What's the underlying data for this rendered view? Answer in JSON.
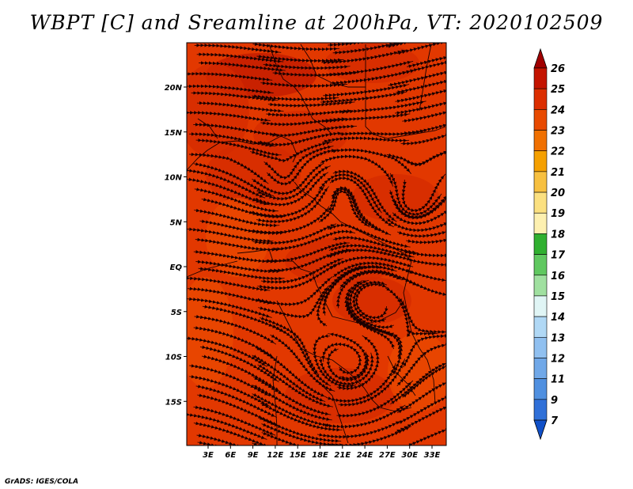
{
  "title": "WBPT [C] and Sreamline at 200hPa, VT: 2020102509",
  "credit": "GrADS: IGES/COLA",
  "map": {
    "lat_ticks": [
      "20N",
      "15N",
      "10N",
      "5N",
      "EQ",
      "5S",
      "10S",
      "15S"
    ],
    "lon_ticks": [
      "3E",
      "6E",
      "9E",
      "12E",
      "15E",
      "18E",
      "21E",
      "24E",
      "27E",
      "30E",
      "33E"
    ],
    "field_colors": [
      "#c01a00",
      "#d42b00",
      "#e33a00",
      "#ea4a00"
    ]
  },
  "colorbar": {
    "levels": [
      "26",
      "25",
      "24",
      "23",
      "22",
      "21",
      "20",
      "19",
      "18",
      "17",
      "16",
      "15",
      "14",
      "13",
      "12",
      "11",
      "9",
      "7"
    ],
    "colors": [
      "#a00000",
      "#c41400",
      "#dc2e00",
      "#e84a00",
      "#f07000",
      "#f5a000",
      "#f7c040",
      "#fbe080",
      "#fdf0b0",
      "#30b030",
      "#60c860",
      "#a0e0a0",
      "#e0f5f5",
      "#b0d8f5",
      "#90c0f0",
      "#70a8e8",
      "#5090e0",
      "#3070d8",
      "#1050c8"
    ]
  }
}
